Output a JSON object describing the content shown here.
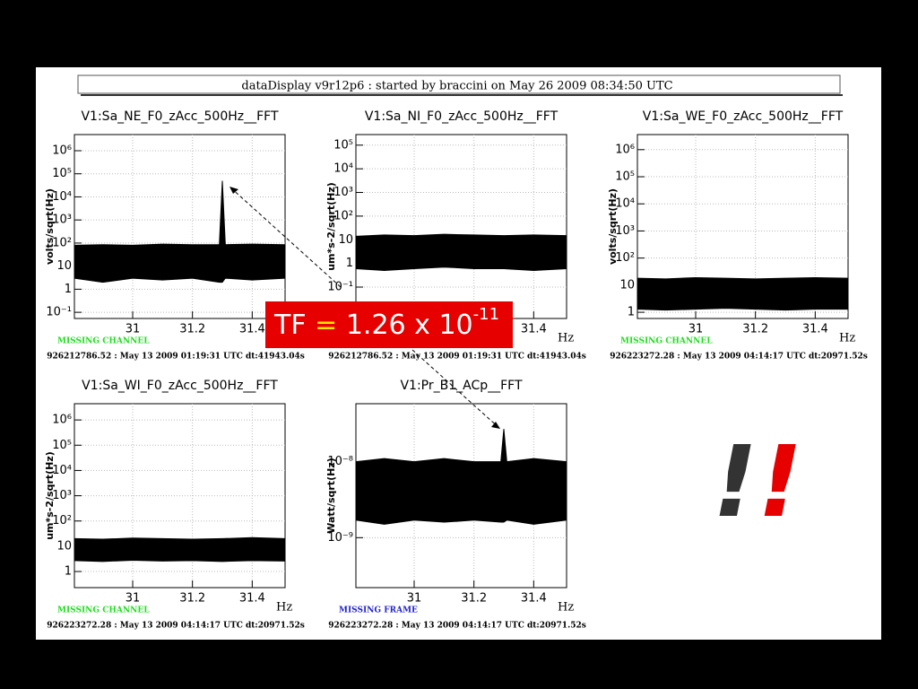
{
  "header": "dataDisplay v9r12p6 : started by braccini on May 26 2009 08:34:50 UTC",
  "annotation": {
    "prefix": "TF",
    "equals": "=",
    "mantissa": "1.26 x 10",
    "exponent": "-11"
  },
  "exclamation": "!!",
  "chart_data": [
    {
      "type": "band",
      "title": "V1:Sa_NE_F0_zAcc_500Hz__FFT",
      "y_label": "volts/sqrt(Hz)",
      "x_label": "Hz",
      "status": "MISSING CHANNEL",
      "status_color": "#22dd22",
      "footer": "926212786.52 : May 13 2009 01:19:31 UTC dt:41943.04s",
      "log_y": true,
      "grid": true,
      "color": "#000000",
      "x": [
        30.805,
        30.9,
        31.0,
        31.1,
        31.2,
        31.29,
        31.3,
        31.31,
        31.4,
        31.51
      ],
      "upper": [
        80,
        85,
        80,
        90,
        85,
        85,
        50000,
        85,
        90,
        85
      ],
      "lower": [
        3,
        2,
        3,
        2.5,
        3,
        2,
        2,
        3,
        2.5,
        3
      ],
      "xlim": [
        30.805,
        31.51
      ],
      "xticks": [
        31,
        31.2,
        31.4
      ],
      "ylim": [
        0.054,
        5000000
      ],
      "yticks": [
        {
          "value": 0.1,
          "label": "10⁻¹"
        },
        1,
        10,
        {
          "value": 100,
          "label": "10²"
        },
        {
          "value": 1000,
          "label": "10³"
        },
        {
          "value": 10000,
          "label": "10⁴"
        },
        {
          "value": 100000,
          "label": "10⁵"
        },
        {
          "value": 1000000,
          "label": "10⁶"
        }
      ]
    },
    {
      "type": "band",
      "title": "V1:Sa_NI_F0_zAcc_500Hz__FFT",
      "y_label": "um*s-2/sqrt(Hz)",
      "x_label": "Hz",
      "footer": "926212786.52 : May 13 2009 01:19:31 UTC dt:41943.04s",
      "log_y": true,
      "grid": true,
      "color": "#000000",
      "x": [
        30.805,
        30.9,
        31.0,
        31.1,
        31.2,
        31.3,
        31.4,
        31.51
      ],
      "upper": [
        14,
        16,
        15,
        17,
        16,
        15,
        16,
        15
      ],
      "lower": [
        0.6,
        0.5,
        0.6,
        0.7,
        0.6,
        0.6,
        0.5,
        0.6
      ],
      "xlim": [
        30.805,
        31.51
      ],
      "xticks": [
        31,
        31.2,
        31.4
      ],
      "ylim": [
        0.0047,
        280000
      ],
      "yticks": [
        {
          "value": 0.1,
          "label": "10⁻¹"
        },
        1,
        10,
        {
          "value": 100,
          "label": "10²"
        },
        {
          "value": 1000,
          "label": "10³"
        },
        {
          "value": 10000,
          "label": "10⁴"
        },
        {
          "value": 100000,
          "label": "10⁵"
        }
      ]
    },
    {
      "type": "band",
      "title": "V1:Sa_WE_F0_zAcc_500Hz__FFT",
      "y_label": "volts/sqrt(Hz)",
      "x_label": "Hz",
      "status": "MISSING CHANNEL",
      "status_color": "#22dd22",
      "footer": "926223272.28 : May 13 2009 04:14:17 UTC dt:20971.52s",
      "log_y": true,
      "grid": true,
      "color": "#000000",
      "x": [
        30.805,
        30.9,
        31.0,
        31.1,
        31.2,
        31.3,
        31.4,
        31.51
      ],
      "upper": [
        18,
        17,
        19,
        18,
        17,
        18,
        19,
        18
      ],
      "lower": [
        1.3,
        1.2,
        1.3,
        1.4,
        1.3,
        1.2,
        1.3,
        1.3
      ],
      "xlim": [
        30.805,
        31.51
      ],
      "xticks": [
        31,
        31.2,
        31.4
      ],
      "ylim": [
        0.59,
        3600000
      ],
      "yticks": [
        1,
        10,
        {
          "value": 100,
          "label": "10²"
        },
        {
          "value": 1000,
          "label": "10³"
        },
        {
          "value": 10000,
          "label": "10⁴"
        },
        {
          "value": 100000,
          "label": "10⁵"
        },
        {
          "value": 1000000,
          "label": "10⁶"
        }
      ]
    },
    {
      "type": "band",
      "title": "V1:Sa_WI_F0_zAcc_500Hz__FFT",
      "y_label": "um*s-2/sqrt(Hz)",
      "x_label": "Hz",
      "status": "MISSING CHANNEL",
      "status_color": "#22dd22",
      "footer": "926223272.28 : May 13 2009 04:14:17 UTC dt:20971.52s",
      "log_y": true,
      "grid": true,
      "color": "#000000",
      "x": [
        30.805,
        30.9,
        31.0,
        31.1,
        31.2,
        31.3,
        31.4,
        31.51
      ],
      "upper": [
        20,
        19,
        21,
        20,
        19,
        20,
        22,
        20
      ],
      "lower": [
        2.7,
        2.5,
        2.8,
        2.6,
        2.7,
        2.5,
        2.7,
        2.6
      ],
      "xlim": [
        30.805,
        31.51
      ],
      "xticks": [
        31,
        31.2,
        31.4
      ],
      "ylim": [
        0.23,
        4400000
      ],
      "yticks": [
        1,
        10,
        {
          "value": 100,
          "label": "10²"
        },
        {
          "value": 1000,
          "label": "10³"
        },
        {
          "value": 10000,
          "label": "10⁴"
        },
        {
          "value": 100000,
          "label": "10⁵"
        },
        {
          "value": 1000000,
          "label": "10⁶"
        }
      ]
    },
    {
      "type": "band",
      "title": "V1:Pr_B1_ACp__FFT",
      "y_label": "Watt/sqrt(Hz)",
      "x_label": "Hz",
      "status": "MISSING FRAME",
      "status_color": "#2222cc",
      "footer": "926223272.28 : May 13 2009 04:14:17 UTC dt:20971.52s",
      "log_y": true,
      "grid": true,
      "color": "#000000",
      "x": [
        30.805,
        30.9,
        31.0,
        31.1,
        31.2,
        31.29,
        31.3,
        31.31,
        31.4,
        31.51
      ],
      "upper": [
        1e-08,
        1.1e-08,
        1e-08,
        1.1e-08,
        1e-08,
        1e-08,
        2.7e-08,
        1e-08,
        1.1e-08,
        1e-08
      ],
      "lower": [
        1.7e-09,
        1.5e-09,
        1.7e-09,
        1.6e-09,
        1.7e-09,
        1.6e-09,
        1.6e-09,
        1.7e-09,
        1.5e-09,
        1.7e-09
      ],
      "xlim": [
        30.805,
        31.51
      ],
      "xticks": [
        31,
        31.2,
        31.4
      ],
      "ylim": [
        2.2e-10,
        5.8e-08
      ],
      "yticks": [
        {
          "value": 1e-09,
          "label": "10⁻⁹"
        },
        {
          "value": 1e-08,
          "label": "10⁻⁸"
        }
      ]
    }
  ]
}
